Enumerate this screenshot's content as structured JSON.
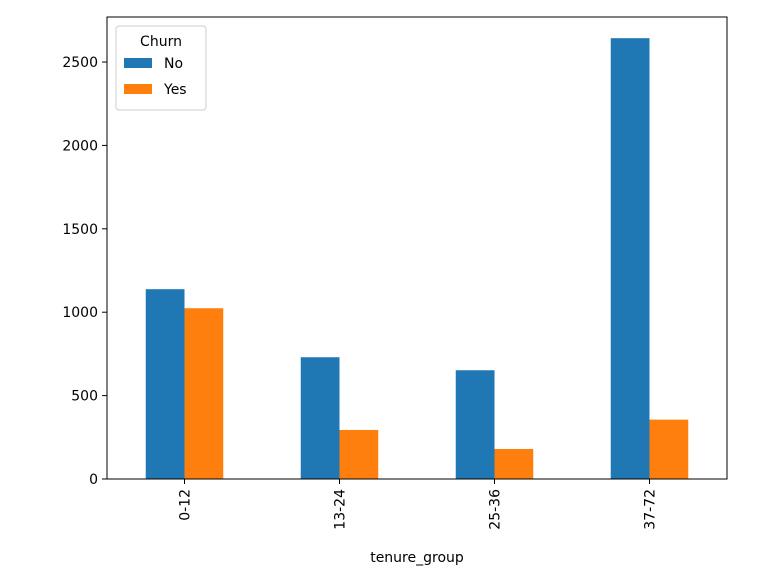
{
  "chart_data": {
    "type": "bar",
    "title": "",
    "xlabel": "tenure_group",
    "ylabel": "",
    "categories": [
      "0-12",
      "13-24",
      "25-36",
      "37-72"
    ],
    "series": [
      {
        "name": "No",
        "values": [
          1138,
          730,
          652,
          2643
        ],
        "color": "#1f77b4"
      },
      {
        "name": "Yes",
        "values": [
          1024,
          294,
          180,
          356
        ],
        "color": "#ff7f0e"
      }
    ],
    "ylim": [
      0,
      2770
    ],
    "yticks": [
      0,
      500,
      1000,
      1500,
      2000,
      2500
    ],
    "grid": false,
    "legend": {
      "title": "Churn",
      "placement": "top-left"
    }
  }
}
